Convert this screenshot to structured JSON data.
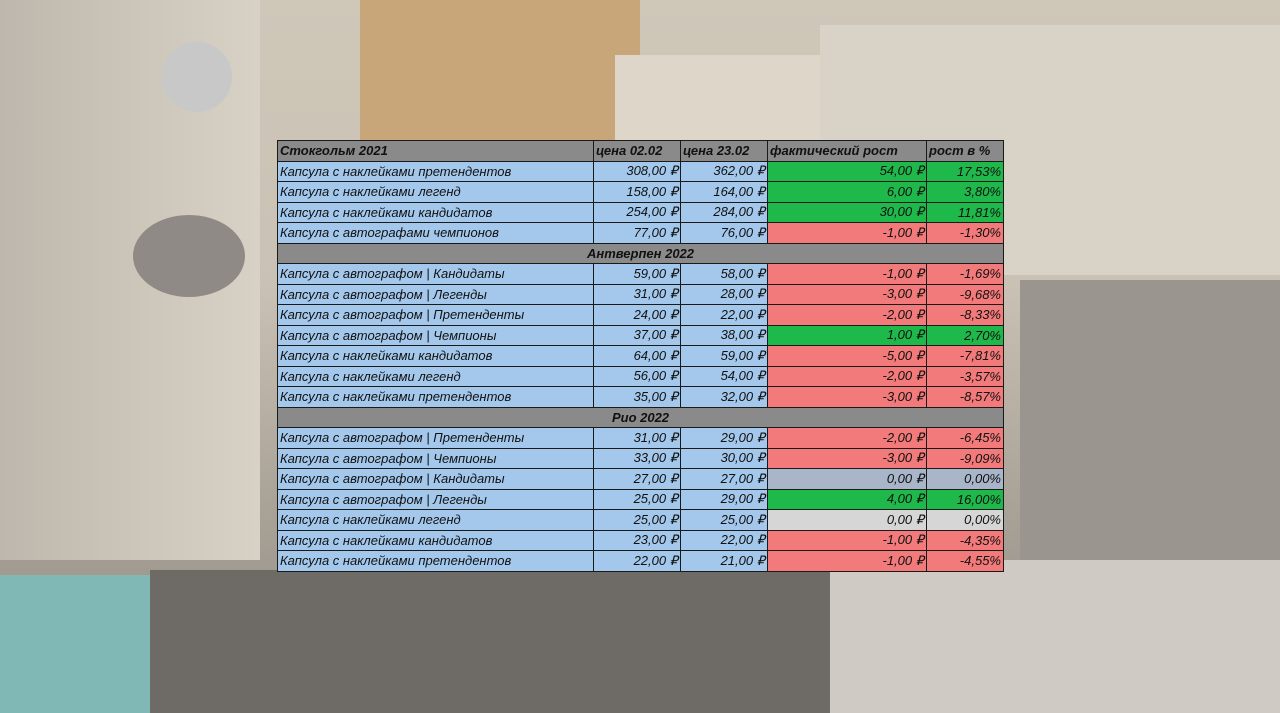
{
  "table": {
    "columns": [
      "цена 02.02",
      "цена 23.02",
      "фактический рост",
      "рост в %"
    ],
    "sections": [
      {
        "title": "Стокгольм 2021",
        "rows": [
          {
            "cells": [
              "Капсула с наклейками претендентов",
              "308,00 ₽",
              "362,00 ₽",
              "54,00 ₽",
              "17,53%"
            ],
            "color": "#1fb84a"
          },
          {
            "cells": [
              "Капсула с наклейками легенд",
              "158,00 ₽",
              "164,00 ₽",
              "6,00 ₽",
              "3,80%"
            ],
            "color": "#1fb84a"
          },
          {
            "cells": [
              "Капсула с наклейками кандидатов",
              "254,00 ₽",
              "284,00 ₽",
              "30,00 ₽",
              "11,81%"
            ],
            "color": "#1fb84a"
          },
          {
            "cells": [
              "Капсула с автографами чемпионов",
              "77,00 ₽",
              "76,00 ₽",
              "-1,00 ₽",
              "-1,30%"
            ],
            "color": "#f27a7a"
          }
        ]
      },
      {
        "title": "Антверпен 2022",
        "rows": [
          {
            "cells": [
              "Капсула с автографом | Кандидаты",
              "59,00 ₽",
              "58,00 ₽",
              "-1,00 ₽",
              "-1,69%"
            ],
            "color": "#f27a7a"
          },
          {
            "cells": [
              "Капсула с автографом | Легенды",
              "31,00 ₽",
              "28,00 ₽",
              "-3,00 ₽",
              "-9,68%"
            ],
            "color": "#f27a7a"
          },
          {
            "cells": [
              "Капсула с автографом | Претенденты",
              "24,00 ₽",
              "22,00 ₽",
              "-2,00 ₽",
              "-8,33%"
            ],
            "color": "#f27a7a"
          },
          {
            "cells": [
              "Капсула с автографом | Чемпионы",
              "37,00 ₽",
              "38,00 ₽",
              "1,00 ₽",
              "2,70%"
            ],
            "color": "#1fb84a"
          },
          {
            "cells": [
              "Капсула с наклейками кандидатов",
              "64,00 ₽",
              "59,00 ₽",
              "-5,00 ₽",
              "-7,81%"
            ],
            "color": "#f27a7a"
          },
          {
            "cells": [
              "Капсула с наклейками легенд",
              "56,00 ₽",
              "54,00 ₽",
              "-2,00 ₽",
              "-3,57%"
            ],
            "color": "#f27a7a"
          },
          {
            "cells": [
              "Капсула с наклейками претендентов",
              "35,00 ₽",
              "32,00 ₽",
              "-3,00 ₽",
              "-8,57%"
            ],
            "color": "#f27a7a"
          }
        ]
      },
      {
        "title": "Рио 2022",
        "rows": [
          {
            "cells": [
              "Капсула с автографом | Претенденты",
              "31,00 ₽",
              "29,00 ₽",
              "-2,00 ₽",
              "-6,45%"
            ],
            "color": "#f27a7a"
          },
          {
            "cells": [
              "Капсула с автографом | Чемпионы",
              "33,00 ₽",
              "30,00 ₽",
              "-3,00 ₽",
              "-9,09%"
            ],
            "color": "#f27a7a"
          },
          {
            "cells": [
              "Капсула с автографом | Кандидаты",
              "27,00 ₽",
              "27,00 ₽",
              "0,00 ₽",
              "0,00%"
            ],
            "color": "#a9b5c9"
          },
          {
            "cells": [
              "Капсула с автографом | Легенды",
              "25,00 ₽",
              "29,00 ₽",
              "4,00 ₽",
              "16,00%"
            ],
            "color": "#1fb84a"
          },
          {
            "cells": [
              "Капсула с наклейками легенд",
              "25,00 ₽",
              "25,00 ₽",
              "0,00 ₽",
              "0,00%"
            ],
            "color": "#d6d6d6"
          },
          {
            "cells": [
              "Капсула с наклейками кандидатов",
              "23,00 ₽",
              "22,00 ₽",
              "-1,00 ₽",
              "-4,35%"
            ],
            "color": "#f27a7a"
          },
          {
            "cells": [
              "Капсула с наклейками претендентов",
              "22,00 ₽",
              "21,00 ₽",
              "-1,00 ₽",
              "-4,55%"
            ],
            "color": "#f27a7a"
          }
        ]
      }
    ]
  }
}
